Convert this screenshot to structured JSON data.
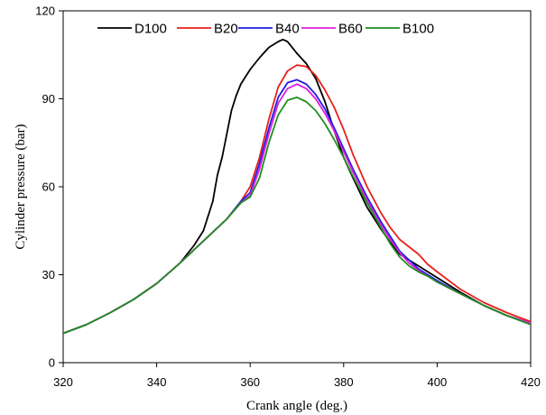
{
  "chart_data": {
    "type": "line",
    "xlabel": "Crank angle (deg.)",
    "ylabel": "Cylinder pressure (bar)",
    "xlim": [
      320,
      420
    ],
    "ylim": [
      0,
      120
    ],
    "xticks": [
      320,
      340,
      360,
      380,
      400,
      420
    ],
    "yticks": [
      0,
      30,
      60,
      90,
      120
    ],
    "grid": false,
    "legend": "top",
    "series": [
      {
        "name": "D100",
        "color": "#000000",
        "x": [
          320,
          325,
          330,
          335,
          340,
          345,
          348,
          350,
          352,
          353,
          354,
          355,
          356,
          357,
          358,
          360,
          362,
          364,
          366,
          367,
          368,
          369,
          370,
          372,
          374,
          376,
          378,
          380,
          382,
          385,
          388,
          390,
          392,
          394,
          396,
          398,
          400,
          405,
          410,
          415,
          420
        ],
        "y": [
          10,
          13,
          17,
          21.5,
          27,
          34,
          40,
          45,
          55,
          64,
          70,
          78,
          86,
          91,
          95,
          100,
          104,
          107.5,
          109.5,
          110.2,
          109.5,
          107.5,
          105.5,
          102,
          97,
          89,
          79,
          70,
          63,
          53,
          45.5,
          41,
          37,
          35,
          33,
          31,
          29,
          24,
          19.5,
          16,
          13.5
        ]
      },
      {
        "name": "B20",
        "color": "#e8201c",
        "x": [
          320,
          325,
          330,
          335,
          340,
          345,
          350,
          355,
          358,
          360,
          362,
          364,
          366,
          368,
          370,
          372,
          374,
          376,
          378,
          380,
          382,
          385,
          388,
          390,
          392,
          394,
          396,
          398,
          400,
          405,
          410,
          415,
          420
        ],
        "y": [
          10,
          13,
          17,
          21.5,
          27,
          34,
          41.5,
          49,
          55,
          60,
          70,
          83,
          94,
          99.5,
          101.5,
          101,
          98,
          93,
          87,
          79.5,
          71,
          60,
          51,
          46,
          42,
          39.5,
          37,
          33.5,
          31,
          25,
          20.5,
          17,
          14
        ]
      },
      {
        "name": "B40",
        "color": "#1f1fe0",
        "x": [
          320,
          325,
          330,
          335,
          340,
          345,
          350,
          355,
          358,
          360,
          362,
          364,
          366,
          368,
          370,
          372,
          374,
          376,
          378,
          380,
          382,
          385,
          388,
          390,
          392,
          394,
          396,
          398,
          400,
          405,
          410,
          415,
          420
        ],
        "y": [
          10,
          13,
          17,
          21.5,
          27,
          34,
          41.5,
          49,
          55,
          58,
          68,
          80,
          90.5,
          95.5,
          96.5,
          95,
          91.5,
          86.5,
          80,
          73,
          66,
          56.5,
          48,
          43,
          38,
          35,
          32,
          30,
          28,
          23.5,
          19.5,
          16,
          13.5
        ]
      },
      {
        "name": "B60",
        "color": "#e020e0",
        "x": [
          320,
          325,
          330,
          335,
          340,
          345,
          350,
          355,
          358,
          360,
          362,
          364,
          366,
          368,
          370,
          372,
          374,
          376,
          378,
          380,
          382,
          385,
          388,
          390,
          392,
          394,
          396,
          398,
          400,
          405,
          410,
          415,
          420
        ],
        "y": [
          10,
          13,
          17,
          21.5,
          27,
          34,
          41.5,
          49,
          54.5,
          57,
          66,
          78,
          88.5,
          93.5,
          95,
          93.5,
          90,
          85,
          79,
          72,
          65,
          55.5,
          47,
          42,
          37.5,
          34,
          31.5,
          29.5,
          27.5,
          23.5,
          19.5,
          16,
          13.5
        ]
      },
      {
        "name": "B100",
        "color": "#1e8f1e",
        "x": [
          320,
          325,
          330,
          335,
          340,
          345,
          350,
          355,
          358,
          360,
          362,
          364,
          366,
          368,
          370,
          372,
          374,
          376,
          378,
          380,
          382,
          385,
          388,
          390,
          392,
          394,
          396,
          398,
          400,
          405,
          410,
          415,
          420
        ],
        "y": [
          10,
          13,
          17,
          21.5,
          27,
          34,
          41.5,
          49,
          54.5,
          56.5,
          63,
          75,
          84.5,
          89.5,
          90.5,
          89,
          86,
          81.5,
          76,
          70,
          63.5,
          54.5,
          46,
          40.5,
          36,
          33,
          31,
          29.5,
          27.5,
          23.5,
          19.5,
          16,
          13
        ]
      }
    ]
  }
}
